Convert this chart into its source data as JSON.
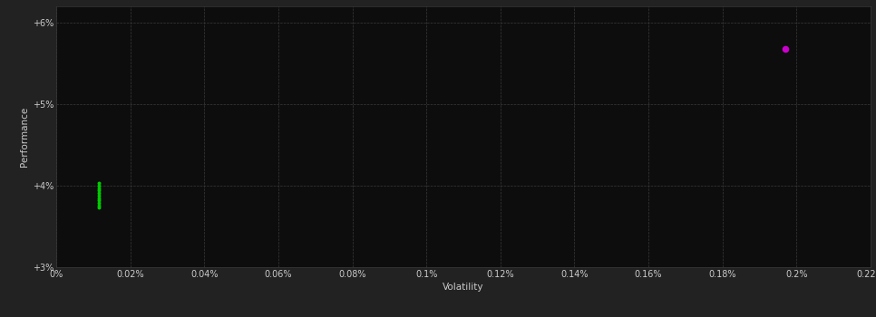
{
  "background_color": "#222222",
  "plot_bg_color": "#0d0d0d",
  "grid_color": "#3a3a3a",
  "text_color": "#cccccc",
  "xlabel": "Volatility",
  "ylabel": "Performance",
  "xlim": [
    0,
    0.0022
  ],
  "ylim": [
    0.03,
    0.062
  ],
  "xticks": [
    0.0,
    0.0002,
    0.0004,
    0.0006,
    0.0008,
    0.001,
    0.0012,
    0.0014,
    0.0016,
    0.0018,
    0.002,
    0.0022
  ],
  "xtick_labels": [
    "0%",
    "0.02%",
    "0.04%",
    "0.06%",
    "0.08%",
    "0.1%",
    "0.12%",
    "0.14%",
    "0.16%",
    "0.18%",
    "0.2%",
    "0.22%"
  ],
  "yticks": [
    0.03,
    0.04,
    0.05,
    0.06
  ],
  "ytick_labels": [
    "+3%",
    "+4%",
    "+5%",
    "+6%"
  ],
  "green_points": [
    [
      0.000115,
      0.0373
    ],
    [
      0.000115,
      0.0376
    ],
    [
      0.000115,
      0.0379
    ],
    [
      0.000115,
      0.0382
    ],
    [
      0.000115,
      0.0385
    ],
    [
      0.000115,
      0.0388
    ],
    [
      0.000115,
      0.0391
    ],
    [
      0.000115,
      0.0394
    ],
    [
      0.000115,
      0.0397
    ],
    [
      0.000115,
      0.04
    ],
    [
      0.000115,
      0.0403
    ]
  ],
  "green_color": "#00cc00",
  "magenta_point": [
    0.00197,
    0.0568
  ],
  "magenta_color": "#cc00cc",
  "point_size": 8,
  "magenta_size": 30
}
